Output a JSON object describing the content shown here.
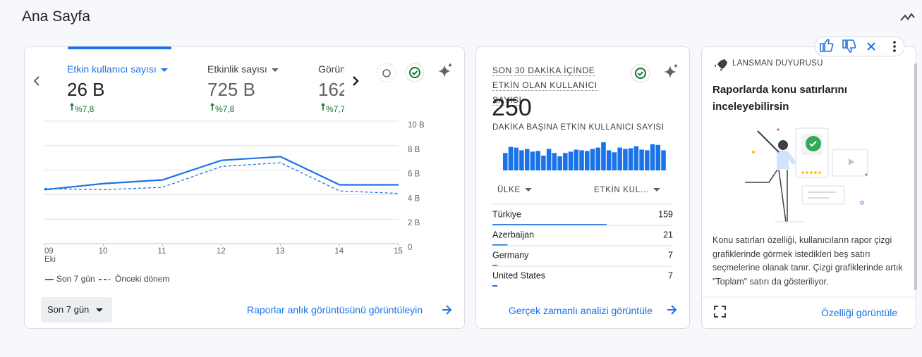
{
  "header": {
    "title": "Ana Sayfa"
  },
  "overview_card": {
    "metrics": [
      {
        "label": "Etkin kullanıcı sayısı",
        "value": "26 B",
        "change": "%7,8"
      },
      {
        "label": "Etkinlik sayısı",
        "value": "725 B",
        "change": "%7,8"
      },
      {
        "label": "Görün",
        "value": "162",
        "change": "%7,7"
      }
    ],
    "chart": {
      "type": "line",
      "categories": [
        "09",
        "10",
        "11",
        "12",
        "13",
        "14",
        "15"
      ],
      "x_sublabel": "Eki",
      "ylim": [
        0,
        10
      ],
      "yticks": [
        {
          "value": 10,
          "label": "10 B"
        },
        {
          "value": 8,
          "label": "8 B"
        },
        {
          "value": 6,
          "label": "6 B"
        },
        {
          "value": 4,
          "label": "4 B"
        },
        {
          "value": 2,
          "label": "2 B"
        },
        0
      ],
      "grid": true,
      "series": [
        {
          "name": "Son 7 gün",
          "color": "#1a73e8",
          "style": "solid",
          "values": [
            4.4,
            4.9,
            5.2,
            6.8,
            7.1,
            4.8,
            4.8
          ]
        },
        {
          "name": "Önceki dönem",
          "color": "#1a73e8",
          "style": "dashed",
          "values": [
            4.5,
            4.4,
            4.6,
            6.3,
            6.6,
            4.3,
            4.1
          ]
        }
      ]
    },
    "date_range": "Son 7 gün",
    "link": "Raporlar anlık görüntüsünü görüntüleyin"
  },
  "realtime_card": {
    "title": "SON 30 DAKİKA İÇİNDE ETKİN OLAN KULLANICI SAYISI",
    "value": "250",
    "per_minute_label": "DAKİKA BAŞINA ETKİN KULLANICI SAYISI",
    "per_minute": {
      "type": "bar",
      "color": "#1a73e8",
      "values": [
        26,
        35,
        34,
        30,
        32,
        28,
        29,
        22,
        32,
        26,
        21,
        26,
        28,
        31,
        30,
        29,
        32,
        34,
        42,
        30,
        27,
        34,
        32,
        33,
        36,
        31,
        30,
        39,
        38,
        30
      ]
    },
    "table": {
      "headers": [
        "ÜLKE",
        "ETKİN KUL…"
      ],
      "rows": [
        [
          "Türkiye",
          159
        ],
        [
          "Azerbaijan",
          21
        ],
        [
          "Germany",
          7
        ],
        [
          "United States",
          7
        ]
      ]
    },
    "link": "Gerçek zamanlı analizi görüntüle"
  },
  "announcement_card": {
    "label": "LANSMAN DUYURUSU",
    "heading": "Raporlarda konu satırlarını inceleyebilirsin",
    "body": "Konu satırları özelliği, kullanıcıların rapor çizgi grafiklerinde görmek istedikleri beş satırı seçmelerine olanak tanır. Çizgi grafiklerinde artık \"Toplam\" satırı da gösteriliyor.",
    "link": "Özelliği görüntüle"
  }
}
